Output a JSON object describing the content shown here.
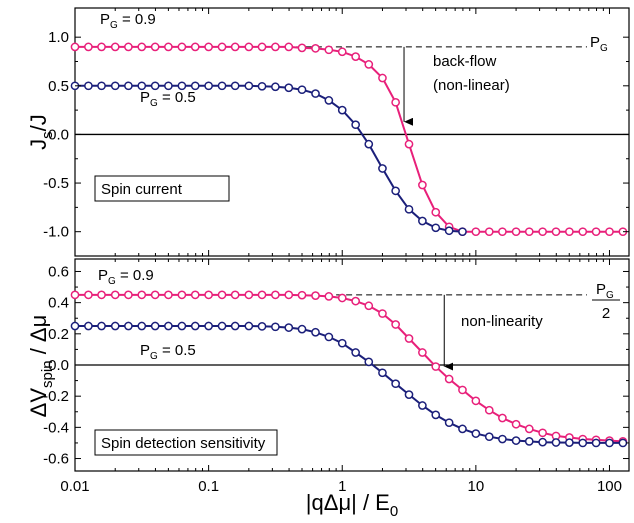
{
  "chart_data": [
    {
      "type": "line",
      "panel": "top",
      "xscale": "log",
      "xlim": [
        0.01,
        140
      ],
      "ylim": [
        -1.25,
        1.3
      ],
      "yticks": [
        1.0,
        0.5,
        0.0,
        -0.5,
        -1.0
      ],
      "ytick_labels": [
        "1.0",
        "0.5",
        "0.0",
        "-0.5",
        "-1.0"
      ],
      "ylabel": {
        "main": "J",
        "sub": "s",
        "tail": "/J"
      },
      "box_label": "Spin current",
      "annotations": {
        "pg09": {
          "main": "P",
          "sub": "G",
          "tail": " = 0.9"
        },
        "pg05": {
          "main": "P",
          "sub": "G",
          "tail": " = 0.5"
        },
        "pg_ref": {
          "main": "P",
          "sub": "G"
        },
        "backflow_1": "back-flow",
        "backflow_2": "(non-linear)"
      },
      "reference_line": {
        "y": 0.9,
        "x_from": 0.45
      },
      "arrow": {
        "x": 2.9,
        "y_from": 0.9,
        "y_to": 0.13
      },
      "series": [
        {
          "color": "#e8207a",
          "x": [
            0.01,
            0.0126,
            0.0158,
            0.02,
            0.0251,
            0.0316,
            0.0398,
            0.05,
            0.0631,
            0.0794,
            0.1,
            0.126,
            0.158,
            0.2,
            0.251,
            0.316,
            0.398,
            0.5,
            0.631,
            0.794,
            1.0,
            1.26,
            1.58,
            2.0,
            2.51,
            3.16,
            3.98,
            5.01,
            6.31,
            7.94,
            10,
            12.6,
            15.8,
            20,
            25.1,
            31.6,
            39.8,
            50.1,
            63.1,
            79.4,
            100,
            126
          ],
          "y": [
            0.9,
            0.9,
            0.9,
            0.9,
            0.9,
            0.9,
            0.9,
            0.9,
            0.9,
            0.9,
            0.9,
            0.9,
            0.9,
            0.9,
            0.9,
            0.9,
            0.9,
            0.89,
            0.885,
            0.87,
            0.85,
            0.8,
            0.72,
            0.58,
            0.33,
            -0.1,
            -0.52,
            -0.8,
            -0.95,
            -1.0,
            -1.0,
            -1.0,
            -1.0,
            -1.0,
            -1.0,
            -1.0,
            -1.0,
            -1.0,
            -1.0,
            -1.0,
            -1.0,
            -1.0
          ]
        },
        {
          "color": "#1b1f7a",
          "x": [
            0.01,
            0.0126,
            0.0158,
            0.02,
            0.0251,
            0.0316,
            0.0398,
            0.05,
            0.0631,
            0.0794,
            0.1,
            0.126,
            0.158,
            0.2,
            0.251,
            0.316,
            0.398,
            0.5,
            0.631,
            0.794,
            1.0,
            1.26,
            1.58,
            2.0,
            2.51,
            3.16,
            3.98,
            5.01,
            6.31,
            7.94
          ],
          "y": [
            0.5,
            0.5,
            0.5,
            0.5,
            0.5,
            0.5,
            0.5,
            0.5,
            0.5,
            0.5,
            0.5,
            0.5,
            0.5,
            0.5,
            0.495,
            0.49,
            0.48,
            0.46,
            0.42,
            0.35,
            0.25,
            0.1,
            -0.1,
            -0.35,
            -0.58,
            -0.77,
            -0.89,
            -0.96,
            -0.99,
            -1.0
          ]
        }
      ]
    },
    {
      "type": "line",
      "panel": "bottom",
      "xscale": "log",
      "xlim": [
        0.01,
        140
      ],
      "ylim": [
        -0.68,
        0.68
      ],
      "yticks": [
        0.6,
        0.4,
        0.2,
        0.0,
        -0.2,
        -0.4,
        -0.6
      ],
      "ytick_labels": [
        "0.6",
        "0.4",
        "0.2",
        "0.0",
        "-0.2",
        "-0.4",
        "-0.6"
      ],
      "xticks": [
        0.01,
        0.1,
        1,
        10,
        100
      ],
      "xtick_labels": [
        "0.01",
        "0.1",
        "1",
        "10",
        "100"
      ],
      "ylabel": {
        "main": "ΔV",
        "sub": "spin",
        "tail": " / Δμ"
      },
      "xlabel": {
        "main": "|qΔμ| / E",
        "sub": "0"
      },
      "box_label": "Spin detection sensitivity",
      "annotations": {
        "pg09": {
          "main": "P",
          "sub": "G",
          "tail": " = 0.9"
        },
        "pg05": {
          "main": "P",
          "sub": "G",
          "tail": " = 0.5"
        },
        "frac_num": {
          "main": "P",
          "sub": "G"
        },
        "frac_den": "2",
        "nonlinearity": "non-linearity"
      },
      "reference_line": {
        "y": 0.45,
        "x_from": 0.9
      },
      "arrow": {
        "x": 5.8,
        "y_from": 0.45,
        "y_to": -0.01
      },
      "series": [
        {
          "color": "#e8207a",
          "x": [
            0.01,
            0.0126,
            0.0158,
            0.02,
            0.0251,
            0.0316,
            0.0398,
            0.05,
            0.0631,
            0.0794,
            0.1,
            0.126,
            0.158,
            0.2,
            0.251,
            0.316,
            0.398,
            0.5,
            0.631,
            0.794,
            1.0,
            1.26,
            1.58,
            2.0,
            2.51,
            3.16,
            3.98,
            5.01,
            6.31,
            7.94,
            10,
            12.6,
            15.8,
            20,
            25.1,
            31.6,
            39.8,
            50.1,
            63.1,
            79.4,
            100,
            126
          ],
          "y": [
            0.45,
            0.45,
            0.45,
            0.45,
            0.45,
            0.45,
            0.45,
            0.45,
            0.45,
            0.45,
            0.45,
            0.45,
            0.45,
            0.45,
            0.45,
            0.45,
            0.45,
            0.448,
            0.445,
            0.44,
            0.43,
            0.41,
            0.38,
            0.33,
            0.26,
            0.17,
            0.08,
            -0.01,
            -0.09,
            -0.16,
            -0.23,
            -0.29,
            -0.34,
            -0.38,
            -0.41,
            -0.435,
            -0.455,
            -0.465,
            -0.475,
            -0.48,
            -0.485,
            -0.49
          ]
        },
        {
          "color": "#1b1f7a",
          "x": [
            0.01,
            0.0126,
            0.0158,
            0.02,
            0.0251,
            0.0316,
            0.0398,
            0.05,
            0.0631,
            0.0794,
            0.1,
            0.126,
            0.158,
            0.2,
            0.251,
            0.316,
            0.398,
            0.5,
            0.631,
            0.794,
            1.0,
            1.26,
            1.58,
            2.0,
            2.51,
            3.16,
            3.98,
            5.01,
            6.31,
            7.94,
            10,
            12.6,
            15.8,
            20,
            25.1,
            31.6,
            39.8,
            50.1,
            63.1,
            79.4,
            100,
            126
          ],
          "y": [
            0.25,
            0.25,
            0.25,
            0.25,
            0.25,
            0.25,
            0.25,
            0.25,
            0.25,
            0.25,
            0.25,
            0.25,
            0.25,
            0.25,
            0.248,
            0.245,
            0.24,
            0.23,
            0.21,
            0.18,
            0.14,
            0.08,
            0.02,
            -0.05,
            -0.12,
            -0.19,
            -0.26,
            -0.32,
            -0.37,
            -0.41,
            -0.44,
            -0.46,
            -0.475,
            -0.485,
            -0.49,
            -0.495,
            -0.497,
            -0.498,
            -0.5,
            -0.5,
            -0.5,
            -0.5
          ]
        }
      ]
    }
  ]
}
